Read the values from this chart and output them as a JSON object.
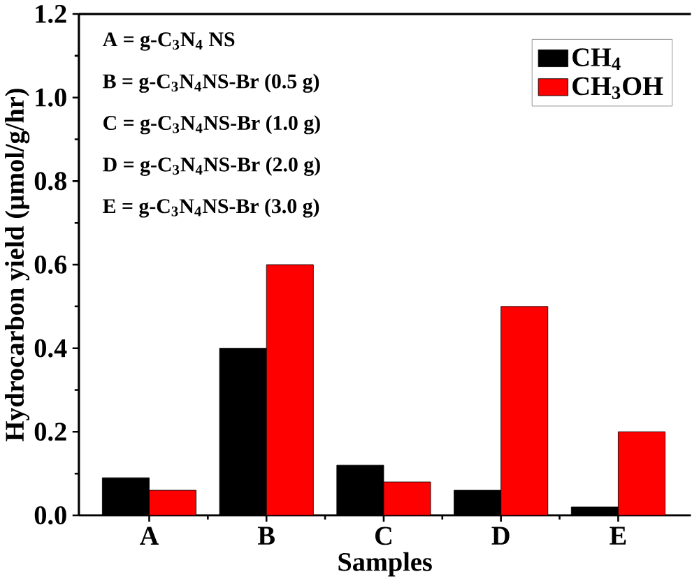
{
  "chart_data": {
    "type": "bar",
    "xlabel": "Samples",
    "ylabel": "Hydrocarbon yield (µmol/g/hr)",
    "categories": [
      "A",
      "B",
      "C",
      "D",
      "E"
    ],
    "series": [
      {
        "name": "CH$_{4}$",
        "color": "#000000",
        "values": [
          0.09,
          0.4,
          0.12,
          0.06,
          0.02
        ]
      },
      {
        "name": "CH$_{3}$OH",
        "color": "#ff0000",
        "values": [
          0.06,
          0.6,
          0.08,
          0.5,
          0.2
        ]
      }
    ],
    "ylim": [
      0,
      1.2
    ],
    "yticks": [
      {
        "value": 0,
        "label": "0.0"
      },
      0.2,
      0.4,
      0.6,
      0.8,
      {
        "value": 1,
        "label": "1.0"
      },
      1.2
    ],
    "legend": "top right",
    "grid": false,
    "annotations": [
      "A = g-C$_{3}$N$_{4}$ NS",
      "B = g-C$_{3}$N$_{4}$NS-Br (0.5 g)",
      "C = g-C$_{3}$N$_{4}$NS-Br (1.0 g)",
      "D = g-C$_{3}$N$_{4}$NS-Br (2.0 g)",
      "E = g-C$_{3}$N$_{4}$NS-Br (3.0 g)"
    ]
  }
}
